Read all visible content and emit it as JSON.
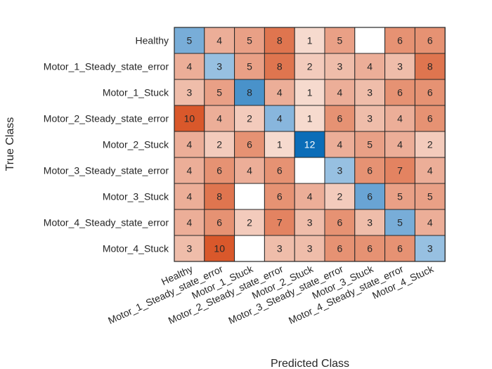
{
  "chart_data": {
    "type": "heatmap",
    "title": "",
    "xlabel": "Predicted Class",
    "ylabel": "True Class",
    "row_labels": [
      "Healthy",
      "Motor_1_Steady_state_error",
      "Motor_1_Stuck",
      "Motor_2_Steady_state_error",
      "Motor_2_Stuck",
      "Motor_3_Steady_state_error",
      "Motor_3_Stuck",
      "Motor_4_Steady_state_error",
      "Motor_4_Stuck"
    ],
    "col_labels": [
      "Healthy",
      "Motor_1_Steady_state_error",
      "Motor_1_Stuck",
      "Motor_2_Steady_state_error",
      "Motor_2_Stuck",
      "Motor_3_Steady_state_error",
      "Motor_3_Stuck",
      "Motor_4_Steady_state_error",
      "Motor_4_Stuck"
    ],
    "values": [
      [
        5,
        4,
        5,
        8,
        1,
        5,
        0,
        6,
        6
      ],
      [
        4,
        3,
        5,
        8,
        2,
        3,
        4,
        3,
        8
      ],
      [
        3,
        5,
        8,
        4,
        1,
        4,
        3,
        6,
        6
      ],
      [
        10,
        4,
        2,
        4,
        1,
        6,
        3,
        4,
        6
      ],
      [
        4,
        2,
        6,
        1,
        12,
        4,
        5,
        4,
        2
      ],
      [
        4,
        6,
        4,
        6,
        0,
        3,
        6,
        7,
        4
      ],
      [
        4,
        8,
        0,
        6,
        4,
        2,
        6,
        5,
        5
      ],
      [
        4,
        6,
        2,
        7,
        3,
        6,
        3,
        5,
        4
      ],
      [
        3,
        10,
        0,
        3,
        3,
        6,
        6,
        6,
        3
      ]
    ],
    "diagonal_scale": {
      "low_color": "#c6dbef",
      "high_color": "#0b6db8",
      "max_value": 12
    },
    "offdiagonal_scale": {
      "low_color": "#f9e8e0",
      "high_color": "#d9582b",
      "max_value": 10
    },
    "grid_color": "#262626"
  }
}
